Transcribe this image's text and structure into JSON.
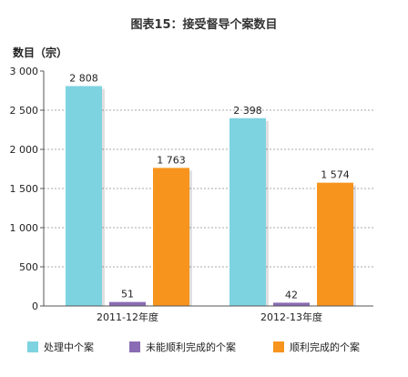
{
  "chart_data": {
    "type": "bar",
    "title": "图表15：接受督导个案数目",
    "ylabel": "数目（宗）",
    "xlabel": "",
    "categories": [
      "2011-12年度",
      "2012-13年度"
    ],
    "series": [
      {
        "name": "处理中个案",
        "values": [
          2808,
          2398
        ],
        "labels": [
          "2 808",
          "2 398"
        ],
        "color": "#7ed3e1"
      },
      {
        "name": "未能顺利完成的个案",
        "values": [
          51,
          42
        ],
        "labels": [
          "51",
          "42"
        ],
        "color": "#8a6cb4"
      },
      {
        "name": "顺利完成的个案",
        "values": [
          1763,
          1574
        ],
        "labels": [
          "1 763",
          "1 574"
        ],
        "color": "#f7941d"
      }
    ],
    "ylim": [
      0,
      3000
    ],
    "yticks": [
      0,
      500,
      1000,
      1500,
      2000,
      2500,
      3000
    ],
    "ytick_labels": [
      "0",
      "500",
      "1 000",
      "1 500",
      "2 000",
      "2 500",
      "3 000"
    ],
    "grid": true,
    "legend_position": "bottom"
  }
}
